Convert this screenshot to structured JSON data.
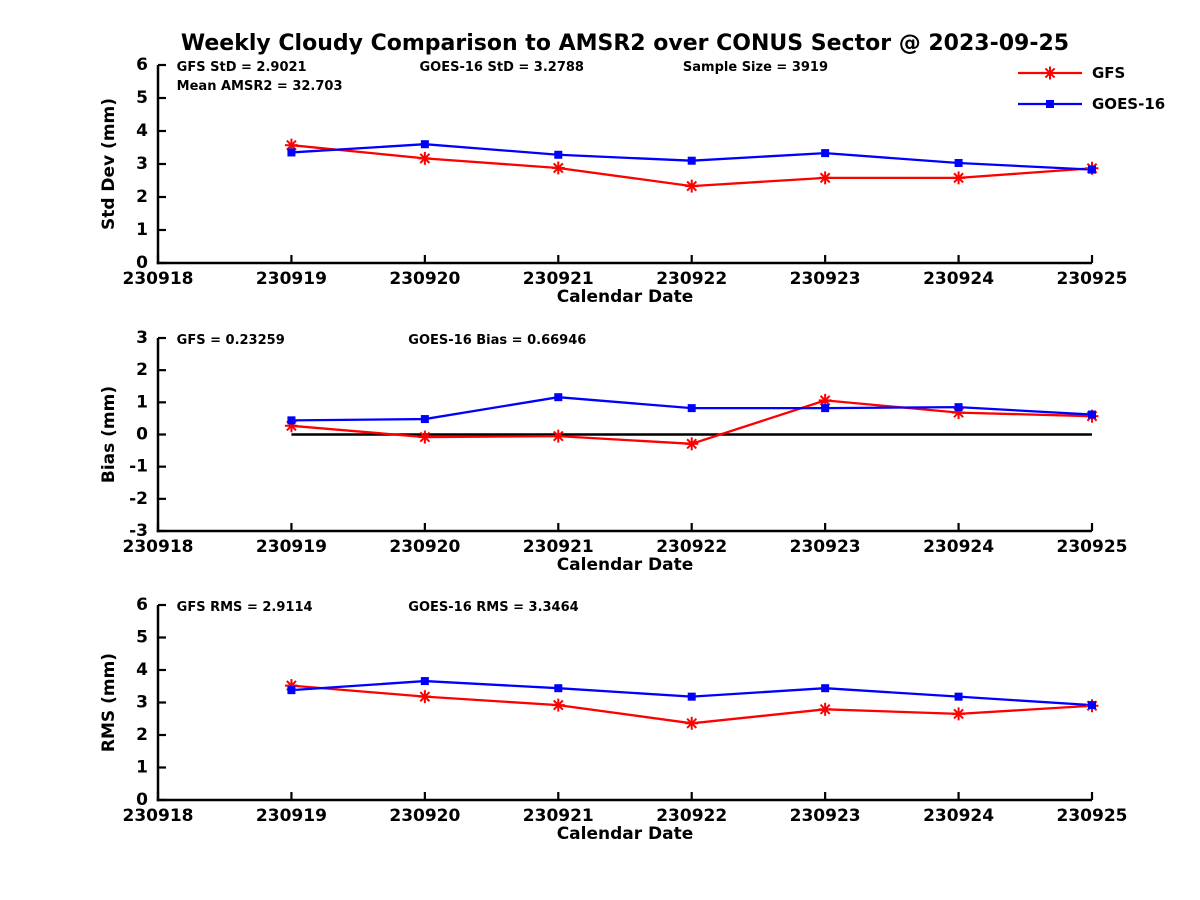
{
  "title": "Weekly Cloudy Comparison to AMSR2 over CONUS Sector @ 2023-09-25",
  "colors": {
    "gfs": "#ff0000",
    "goes16": "#0000ff",
    "axis": "#000000",
    "zero_line": "#000000",
    "background": "#ffffff"
  },
  "legend": {
    "position": "top-right-outside",
    "entries": [
      {
        "label": "GFS",
        "color": "#ff0000",
        "marker": "asterisk"
      },
      {
        "label": "GOES-16",
        "color": "#0000ff",
        "marker": "square"
      }
    ]
  },
  "chart_data": [
    {
      "type": "line",
      "ylabel": "Std Dev (mm)",
      "xlabel": "Calendar Date",
      "ylim": [
        0,
        6
      ],
      "yticks": [
        "0",
        "1",
        "2",
        "3",
        "4",
        "5",
        "6"
      ],
      "x_axis_ticks": [
        "230918",
        "230919",
        "230920",
        "230921",
        "230922",
        "230923",
        "230924",
        "230925"
      ],
      "x": [
        "230919",
        "230920",
        "230921",
        "230922",
        "230923",
        "230924",
        "230925"
      ],
      "grid": false,
      "zero_line": false,
      "annotations": [
        {
          "text": "GFS StD = 2.9021",
          "xf": 0.02,
          "row": 0
        },
        {
          "text": "Mean AMSR2 = 32.703",
          "xf": 0.02,
          "row": 1
        },
        {
          "text": "GOES-16 StD = 3.2788",
          "xf": 0.28,
          "row": 0
        },
        {
          "text": "Sample Size = 3919",
          "xf": 0.562,
          "row": 0
        }
      ],
      "series": [
        {
          "name": "GFS",
          "color": "#ff0000",
          "marker": "asterisk",
          "values": [
            3.57,
            3.17,
            2.88,
            2.33,
            2.58,
            2.58,
            2.87
          ]
        },
        {
          "name": "GOES-16",
          "color": "#0000ff",
          "marker": "square",
          "values": [
            3.35,
            3.6,
            3.28,
            3.1,
            3.33,
            3.03,
            2.83
          ]
        }
      ]
    },
    {
      "type": "line",
      "ylabel": "Bias (mm)",
      "xlabel": "Calendar Date",
      "ylim": [
        -3,
        3
      ],
      "yticks": [
        "-3",
        "-2",
        "-1",
        "0",
        "1",
        "2",
        "3"
      ],
      "x_axis_ticks": [
        "230918",
        "230919",
        "230920",
        "230921",
        "230922",
        "230923",
        "230924",
        "230925"
      ],
      "x": [
        "230919",
        "230920",
        "230921",
        "230922",
        "230923",
        "230924",
        "230925"
      ],
      "grid": false,
      "zero_line": true,
      "annotations": [
        {
          "text": "GFS = 0.23259",
          "xf": 0.02,
          "row": 0
        },
        {
          "text": "GOES-16 Bias  = 0.66946",
          "xf": 0.268,
          "row": 0
        }
      ],
      "series": [
        {
          "name": "GFS",
          "color": "#ff0000",
          "marker": "asterisk",
          "values": [
            0.27,
            -0.08,
            -0.05,
            -0.29,
            1.06,
            0.68,
            0.57
          ]
        },
        {
          "name": "GOES-16",
          "color": "#0000ff",
          "marker": "square",
          "values": [
            0.44,
            0.48,
            1.16,
            0.82,
            0.82,
            0.85,
            0.62
          ]
        }
      ]
    },
    {
      "type": "line",
      "ylabel": "RMS (mm)",
      "xlabel": "Calendar Date",
      "ylim": [
        0,
        6
      ],
      "yticks": [
        "0",
        "1",
        "2",
        "3",
        "4",
        "5",
        "6"
      ],
      "x_axis_ticks": [
        "230918",
        "230919",
        "230920",
        "230921",
        "230922",
        "230923",
        "230924",
        "230925"
      ],
      "x": [
        "230919",
        "230920",
        "230921",
        "230922",
        "230923",
        "230924",
        "230925"
      ],
      "grid": false,
      "zero_line": false,
      "annotations": [
        {
          "text": "GFS RMS = 2.9114",
          "xf": 0.02,
          "row": 0
        },
        {
          "text": "GOES-16 RMS = 3.3464",
          "xf": 0.268,
          "row": 0
        }
      ],
      "series": [
        {
          "name": "GFS",
          "color": "#ff0000",
          "marker": "asterisk",
          "values": [
            3.52,
            3.18,
            2.92,
            2.36,
            2.79,
            2.65,
            2.9
          ]
        },
        {
          "name": "GOES-16",
          "color": "#0000ff",
          "marker": "square",
          "values": [
            3.38,
            3.66,
            3.44,
            3.18,
            3.44,
            3.18,
            2.92
          ]
        }
      ]
    }
  ]
}
